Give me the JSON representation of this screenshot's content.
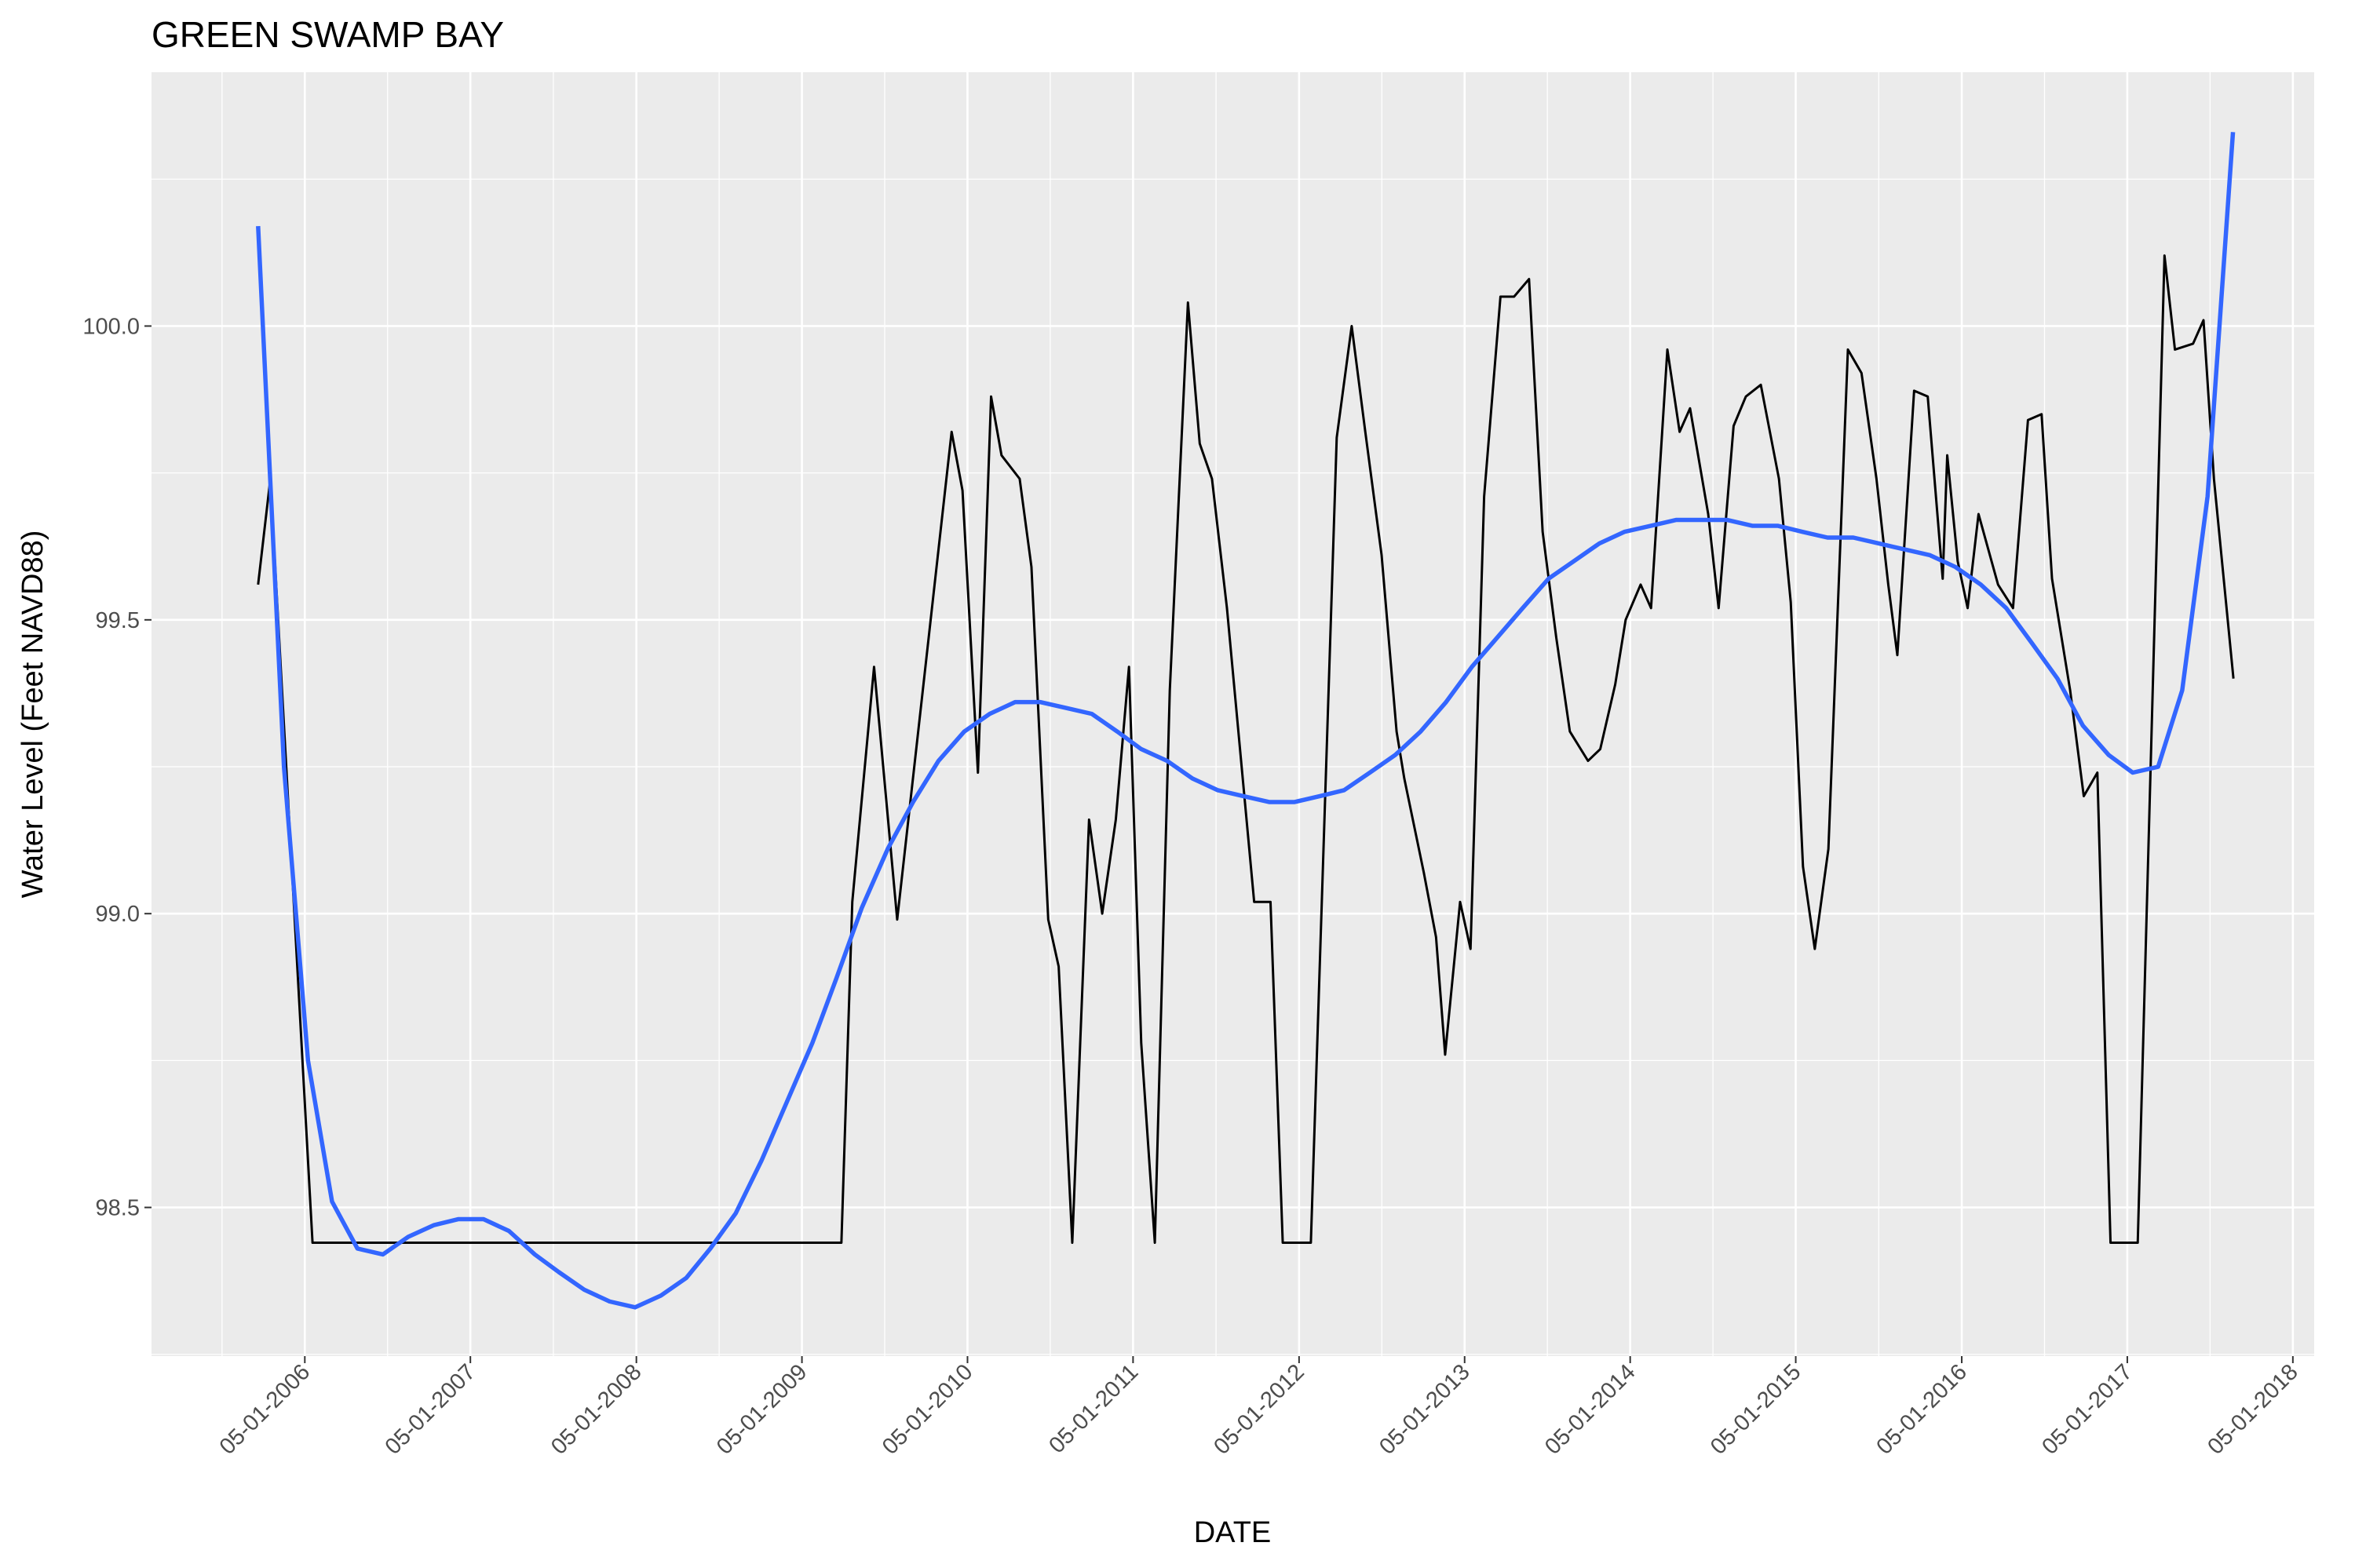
{
  "chart_data": {
    "type": "line",
    "title": "GREEN SWAMP BAY",
    "x_label": "DATE",
    "y_label": "Water Level (Feet NAVD88)",
    "xlim": [
      "2005-05-28",
      "2018-06-17"
    ],
    "xticks": [
      {
        "value": "2006-05-01",
        "label": "05-01-2006"
      },
      {
        "value": "2007-05-01",
        "label": "05-01-2007"
      },
      {
        "value": "2008-05-01",
        "label": "05-01-2008"
      },
      {
        "value": "2009-05-01",
        "label": "05-01-2009"
      },
      {
        "value": "2010-05-01",
        "label": "05-01-2010"
      },
      {
        "value": "2011-05-01",
        "label": "05-01-2011"
      },
      {
        "value": "2012-05-01",
        "label": "05-01-2012"
      },
      {
        "value": "2013-05-01",
        "label": "05-01-2013"
      },
      {
        "value": "2014-05-01",
        "label": "05-01-2014"
      },
      {
        "value": "2015-05-01",
        "label": "05-01-2015"
      },
      {
        "value": "2016-05-01",
        "label": "05-01-2016"
      },
      {
        "value": "2017-05-01",
        "label": "05-01-2017"
      },
      {
        "value": "2018-05-01",
        "label": "05-01-2018"
      }
    ],
    "ylim": [
      98.247,
      100.432
    ],
    "yticks": [
      98.5,
      {
        "value": 99,
        "label": "99.0"
      },
      99.5,
      {
        "value": 100,
        "label": "100.0"
      }
    ],
    "grid": true,
    "series": [
      {
        "color": "#000000",
        "x": [
          "2006-01-18",
          "2006-02-14",
          "2006-05-18",
          "2009-07-27",
          "2009-08-20",
          "2009-10-07",
          "2009-11-27",
          "2010-01-21",
          "2010-03-27",
          "2010-04-20",
          "2010-05-24",
          "2010-06-22",
          "2010-07-15",
          "2010-08-24",
          "2010-09-19",
          "2010-10-26",
          "2010-11-18",
          "2010-12-18",
          "2011-01-24",
          "2011-02-22",
          "2011-03-24",
          "2011-04-22",
          "2011-05-19",
          "2011-06-18",
          "2011-07-21",
          "2011-08-30",
          "2011-09-25",
          "2011-10-22",
          "2011-11-24",
          "2012-01-23",
          "2012-02-28",
          "2012-03-26",
          "2012-05-27",
          "2012-07-23",
          "2012-08-25",
          "2012-09-24",
          "2012-10-30",
          "2012-12-02",
          "2012-12-19",
          "2013-01-31",
          "2013-02-27",
          "2013-03-19",
          "2013-04-21",
          "2013-05-14",
          "2013-06-13",
          "2013-07-19",
          "2013-08-18",
          "2013-09-20",
          "2013-10-20",
          "2013-11-19",
          "2013-12-19",
          "2014-01-28",
          "2014-02-24",
          "2014-03-29",
          "2014-04-21",
          "2014-05-24",
          "2014-06-16",
          "2014-07-22",
          "2014-08-18",
          "2014-09-10",
          "2014-10-20",
          "2014-11-12",
          "2014-12-15",
          "2015-01-11",
          "2015-02-13",
          "2015-03-25",
          "2015-04-20",
          "2015-05-17",
          "2015-06-12",
          "2015-07-12",
          "2015-08-24",
          "2015-09-23",
          "2015-10-26",
          "2015-11-21",
          "2015-12-11",
          "2016-01-17",
          "2016-02-16",
          "2016-03-20",
          "2016-03-30",
          "2016-04-22",
          "2016-05-14",
          "2016-06-07",
          "2016-07-20",
          "2016-08-22",
          "2016-09-24",
          "2016-10-24",
          "2016-11-16",
          "2016-12-26",
          "2017-01-25",
          "2017-02-24",
          "2017-03-25",
          "2017-05-24",
          "2017-07-22",
          "2017-08-14",
          "2017-09-23",
          "2017-10-16",
          "2017-11-08",
          "2017-12-21"
        ],
        "values": [
          99.56,
          99.74,
          98.44,
          98.44,
          99.02,
          99.42,
          98.99,
          99.37,
          99.82,
          99.72,
          99.24,
          99.88,
          99.78,
          99.74,
          99.59,
          98.99,
          98.91,
          98.44,
          99.16,
          99.0,
          99.16,
          99.42,
          98.78,
          98.44,
          99.38,
          100.04,
          99.8,
          99.74,
          99.52,
          99.02,
          99.02,
          98.44,
          98.44,
          99.81,
          100.0,
          99.82,
          99.61,
          99.31,
          99.23,
          99.07,
          98.96,
          98.76,
          99.02,
          98.94,
          99.71,
          100.05,
          100.05,
          100.08,
          99.65,
          99.47,
          99.31,
          99.26,
          99.28,
          99.39,
          99.5,
          99.56,
          99.52,
          99.96,
          99.82,
          99.86,
          99.68,
          99.52,
          99.83,
          99.88,
          99.9,
          99.74,
          99.53,
          99.08,
          98.94,
          99.11,
          99.96,
          99.92,
          99.74,
          99.56,
          99.44,
          99.89,
          99.88,
          99.57,
          99.78,
          99.6,
          99.52,
          99.68,
          99.56,
          99.52,
          99.84,
          99.85,
          99.57,
          99.38,
          99.2,
          99.24,
          98.44,
          98.44,
          100.12,
          99.96,
          99.97,
          100.01,
          99.74,
          99.4
        ]
      },
      {
        "color": "#3366FF",
        "x": [
          "2006-01-18",
          "2006-03-16",
          "2006-05-08",
          "2006-06-30",
          "2006-08-25",
          "2006-10-20",
          "2006-12-15",
          "2007-02-10",
          "2007-04-04",
          "2007-05-30",
          "2007-07-25",
          "2007-09-20",
          "2007-11-12",
          "2008-01-07",
          "2008-03-03",
          "2008-04-28",
          "2008-06-24",
          "2008-08-19",
          "2008-10-11",
          "2008-12-06",
          "2009-02-01",
          "2009-03-29",
          "2009-05-24",
          "2009-07-16",
          "2009-09-10",
          "2009-11-06",
          "2010-01-01",
          "2010-02-26",
          "2010-04-24",
          "2010-06-19",
          "2010-08-14",
          "2010-10-09",
          "2010-12-05",
          "2011-01-30",
          "2011-03-27",
          "2011-05-19",
          "2011-07-15",
          "2011-09-09",
          "2011-11-04",
          "2011-12-30",
          "2012-02-25",
          "2012-04-21",
          "2012-06-16",
          "2012-08-08",
          "2012-10-04",
          "2012-11-29",
          "2013-01-24",
          "2013-03-21",
          "2013-05-17",
          "2013-07-12",
          "2013-09-06",
          "2013-11-02",
          "2013-12-28",
          "2014-02-22",
          "2014-04-19",
          "2014-06-15",
          "2014-08-10",
          "2014-10-05",
          "2014-12-01",
          "2015-01-26",
          "2015-03-23",
          "2015-05-15",
          "2015-07-10",
          "2015-09-05",
          "2015-10-31",
          "2015-12-26",
          "2016-02-21",
          "2016-04-17",
          "2016-06-12",
          "2016-08-07",
          "2016-10-03",
          "2016-11-28",
          "2017-01-23",
          "2017-03-21",
          "2017-05-13",
          "2017-07-08",
          "2017-08-30",
          "2017-10-25",
          "2017-12-20"
        ],
        "values": [
          100.17,
          99.25,
          98.75,
          98.51,
          98.43,
          98.42,
          98.45,
          98.47,
          98.48,
          98.48,
          98.46,
          98.42,
          98.39,
          98.36,
          98.34,
          98.33,
          98.35,
          98.38,
          98.43,
          98.49,
          98.58,
          98.68,
          98.78,
          98.89,
          99.01,
          99.11,
          99.19,
          99.26,
          99.31,
          99.34,
          99.36,
          99.36,
          99.35,
          99.34,
          99.31,
          99.28,
          99.26,
          99.23,
          99.21,
          99.2,
          99.19,
          99.19,
          99.2,
          99.21,
          99.24,
          99.27,
          99.31,
          99.36,
          99.42,
          99.47,
          99.52,
          99.57,
          99.6,
          99.63,
          99.65,
          99.66,
          99.67,
          99.67,
          99.67,
          99.66,
          99.66,
          99.65,
          99.64,
          99.64,
          99.63,
          99.62,
          99.61,
          99.59,
          99.56,
          99.52,
          99.46,
          99.4,
          99.32,
          99.27,
          99.24,
          99.25,
          99.38,
          99.71,
          100.33
        ]
      }
    ]
  }
}
